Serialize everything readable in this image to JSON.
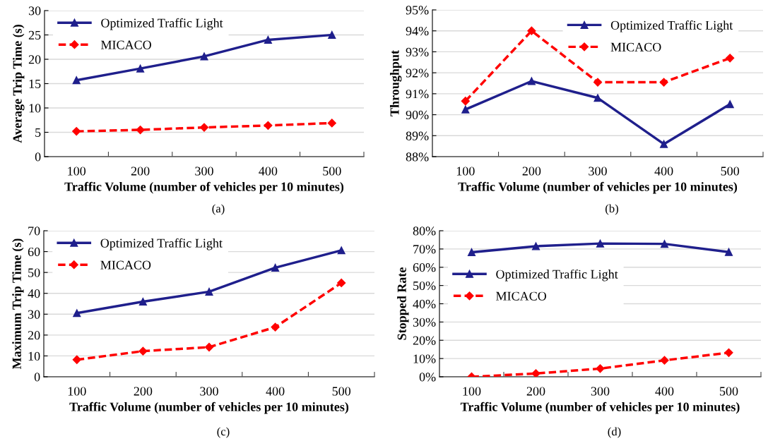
{
  "chart_data": [
    {
      "type": "line",
      "xlabel": "Traffic Volume (number of vehicles per 10 minutes)",
      "ylabel": "Average Trip Time (s)",
      "categories": [
        "100",
        "200",
        "300",
        "400",
        "500"
      ],
      "series": [
        {
          "name": "Optimized Traffic Light",
          "color": "#1f1f8c",
          "marker": "triangle",
          "line_style": "solid",
          "values": [
            15.7,
            18.1,
            20.6,
            24.0,
            25.0
          ]
        },
        {
          "name": "MICACO",
          "color": "#ff0000",
          "marker": "diamond",
          "line_style": "dashed",
          "values": [
            5.2,
            5.5,
            6.0,
            6.4,
            6.9
          ]
        }
      ],
      "ylim": [
        0,
        30
      ],
      "yticks": [
        0,
        5,
        10,
        15,
        20,
        25,
        30
      ],
      "grid": "y",
      "legend": "top left",
      "annotations": [
        "(a)"
      ]
    },
    {
      "type": "line",
      "xlabel": "Traffic Volume (number of vehicles per 10 minutes)",
      "ylabel": "Throughput",
      "categories": [
        "100",
        "200",
        "300",
        "400",
        "500"
      ],
      "series": [
        {
          "name": "Optimized Traffic Light",
          "color": "#1f1f8c",
          "marker": "triangle",
          "line_style": "solid",
          "values": [
            90.25,
            91.6,
            90.8,
            88.6,
            90.5
          ]
        },
        {
          "name": "MICACO",
          "color": "#ff0000",
          "marker": "diamond",
          "line_style": "dashed",
          "values": [
            90.65,
            94.0,
            91.55,
            91.55,
            92.7
          ]
        }
      ],
      "ylim": [
        88,
        95
      ],
      "yticks": [
        {
          "value": 88,
          "label": "88%"
        },
        {
          "value": 89,
          "label": "89%"
        },
        {
          "value": 90,
          "label": "90%"
        },
        {
          "value": 91,
          "label": "91%"
        },
        {
          "value": 92,
          "label": "92%"
        },
        {
          "value": 93,
          "label": "93%"
        },
        {
          "value": 94,
          "label": "94%"
        },
        {
          "value": 95,
          "label": "95%"
        }
      ],
      "grid": "y",
      "legend": "top",
      "annotations": [
        "(b)"
      ]
    },
    {
      "type": "line",
      "xlabel": "Traffic Volume (number of vehicles per 10 minutes)",
      "ylabel": "Maximum Trip Time (s)",
      "categories": [
        "100",
        "200",
        "300",
        "400",
        "500"
      ],
      "series": [
        {
          "name": "Optimized Traffic Light",
          "color": "#1f1f8c",
          "marker": "triangle",
          "line_style": "solid",
          "values": [
            30.5,
            36.0,
            40.8,
            52.3,
            60.6
          ]
        },
        {
          "name": "MICACO",
          "color": "#ff0000",
          "marker": "diamond",
          "line_style": "dashed",
          "values": [
            8.2,
            12.3,
            14.2,
            23.8,
            45.0
          ]
        }
      ],
      "ylim": [
        0,
        70
      ],
      "yticks": [
        0,
        10,
        20,
        30,
        40,
        50,
        60,
        70
      ],
      "grid": "y",
      "legend": "top left",
      "annotations": [
        "(c)"
      ]
    },
    {
      "type": "line",
      "xlabel": "Traffic Volume (number of vehicles per 10 minutes)",
      "ylabel": "Stopped Rate",
      "categories": [
        "100",
        "200",
        "300",
        "400",
        "500"
      ],
      "series": [
        {
          "name": "Optimized Traffic Light",
          "color": "#1f1f8c",
          "marker": "triangle",
          "line_style": "solid",
          "values": [
            68.2,
            71.5,
            73.0,
            72.8,
            68.3
          ]
        },
        {
          "name": "MICACO",
          "color": "#ff0000",
          "marker": "diamond",
          "line_style": "dashed",
          "values": [
            0.0,
            1.8,
            4.5,
            9.0,
            13.2
          ]
        }
      ],
      "ylim": [
        0,
        80
      ],
      "yticks": [
        {
          "value": 0,
          "label": "0%"
        },
        {
          "value": 10,
          "label": "10%"
        },
        {
          "value": 20,
          "label": "20%"
        },
        {
          "value": 30,
          "label": "30%"
        },
        {
          "value": 40,
          "label": "40%"
        },
        {
          "value": 50,
          "label": "50%"
        },
        {
          "value": 60,
          "label": "60%"
        },
        {
          "value": 70,
          "label": "70%"
        },
        {
          "value": 80,
          "label": "80%"
        }
      ],
      "grid": "y",
      "legend": "left",
      "annotations": [
        "(d)"
      ]
    }
  ]
}
